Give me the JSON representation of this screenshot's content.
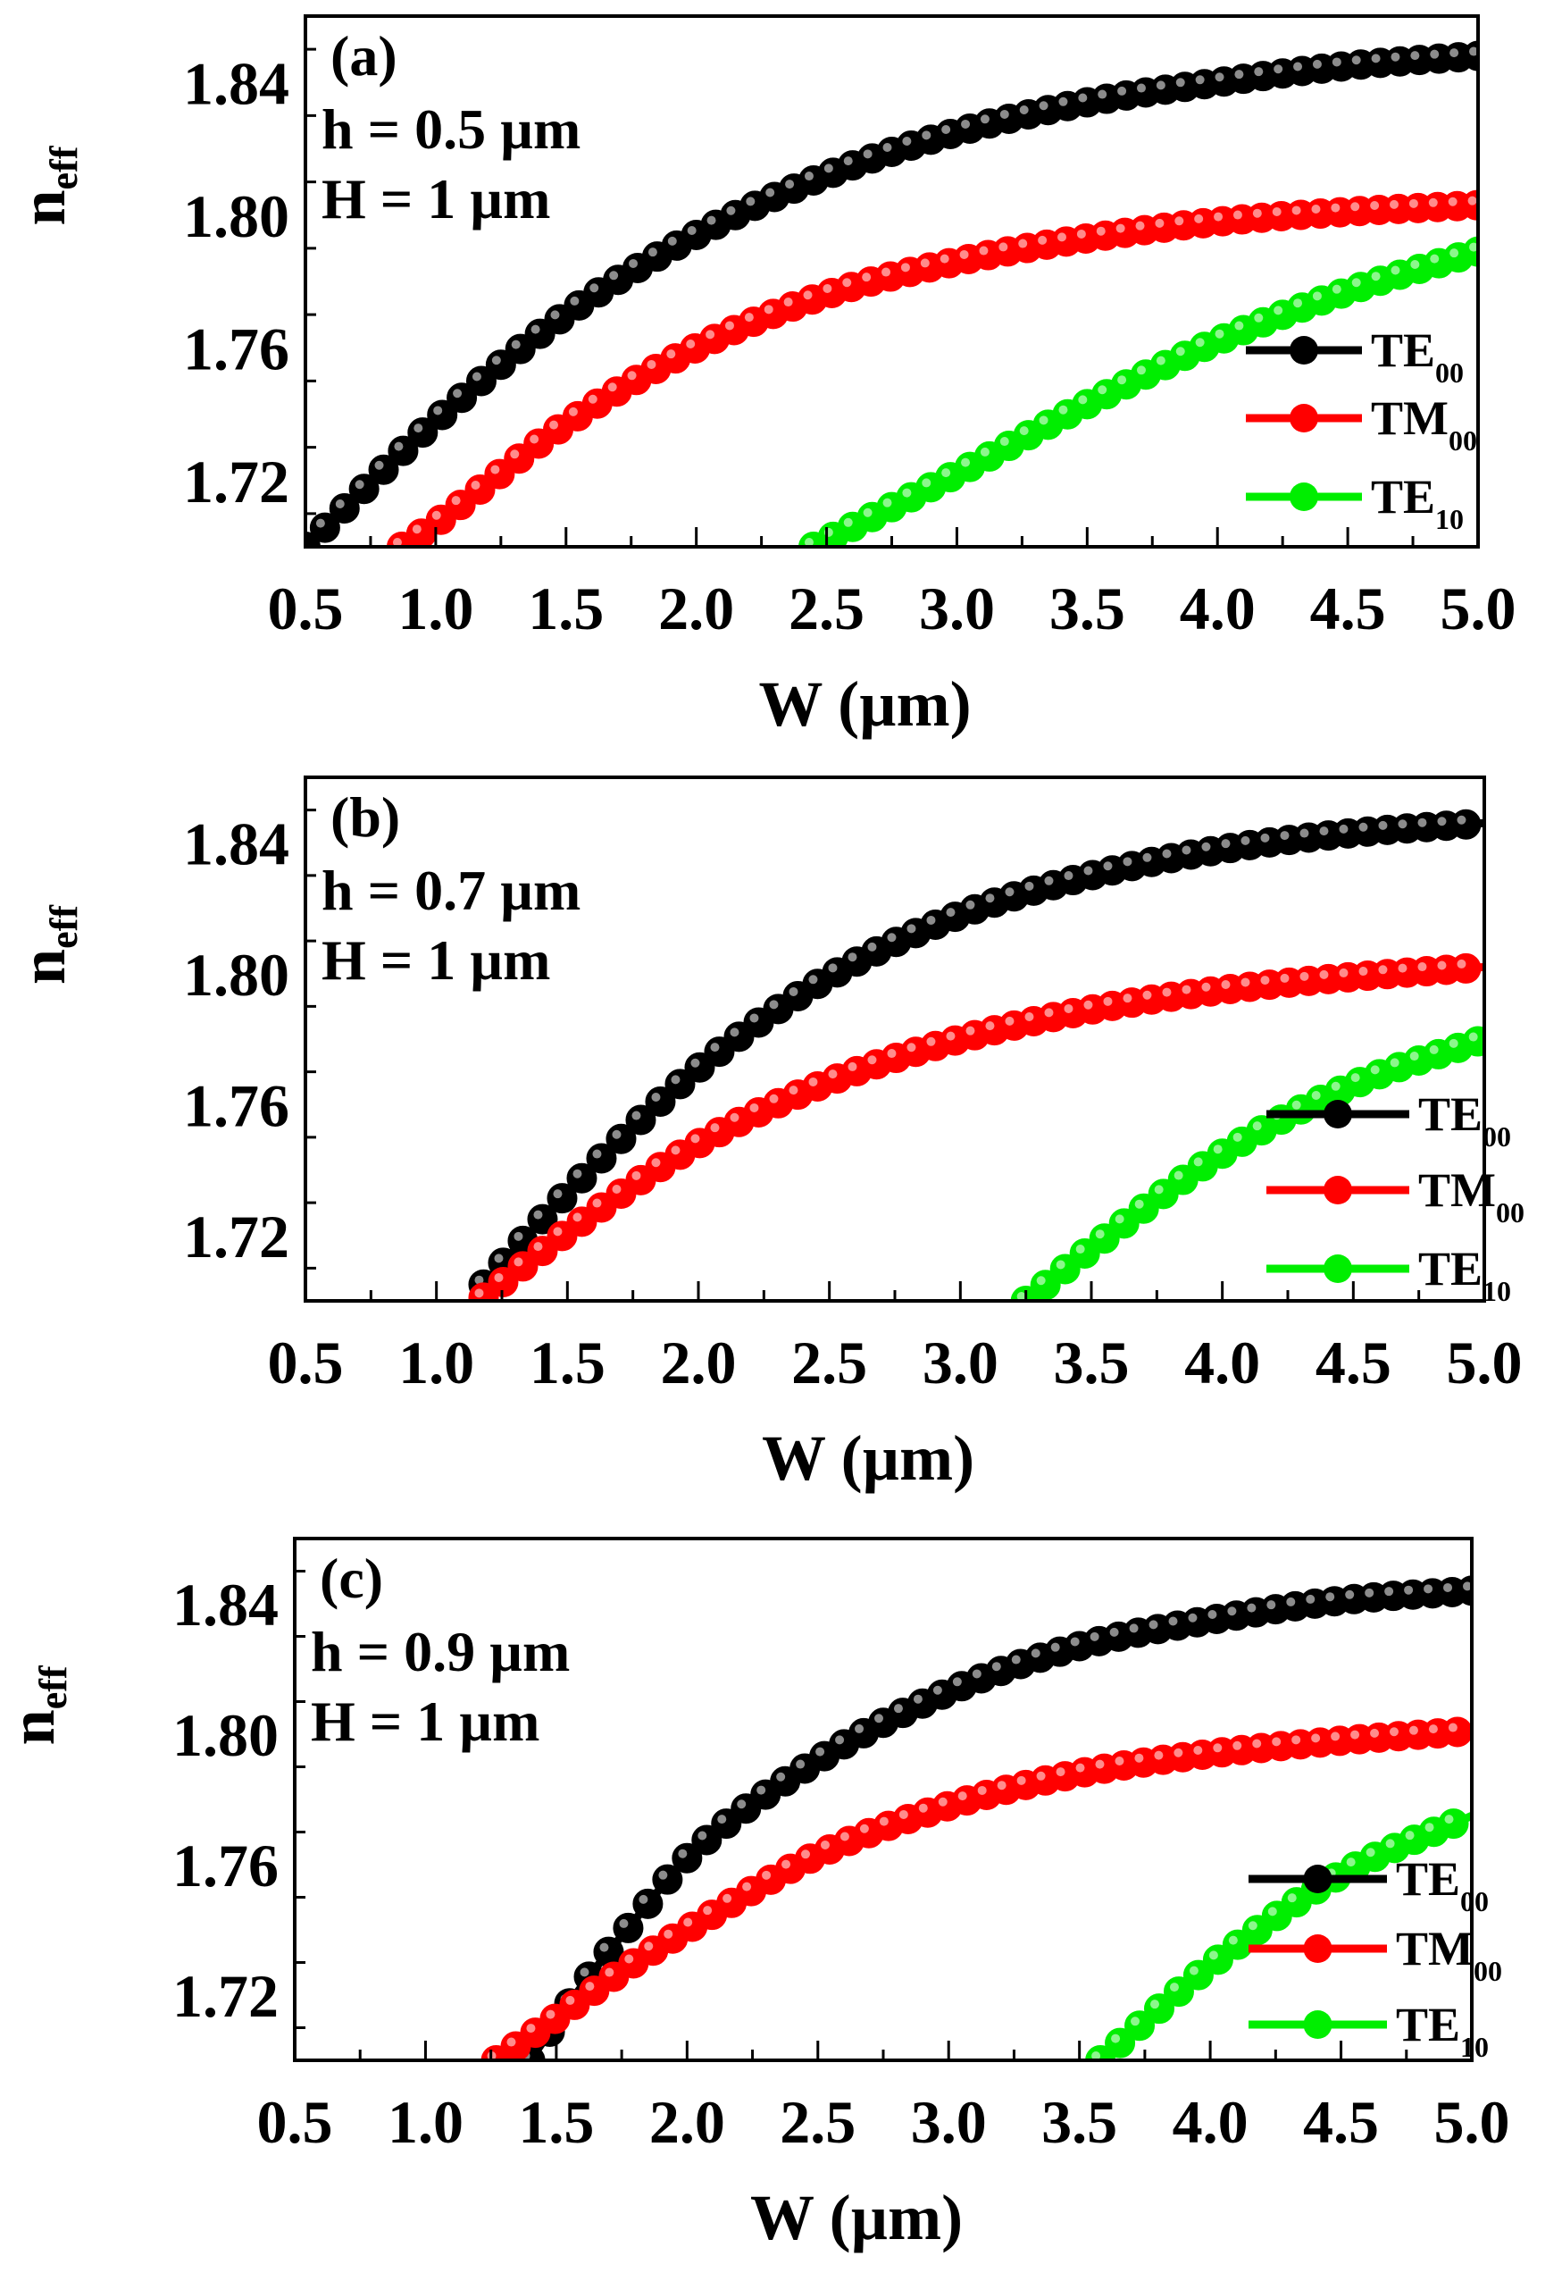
{
  "chart_data": [
    {
      "type": "line",
      "panel_label": "(a)",
      "annotations": [
        "h = 0.5 µm",
        "H = 1 µm"
      ],
      "xlabel": "W (µm)",
      "ylabel": {
        "main": "n",
        "sub": "eff"
      },
      "xlim": [
        0.5,
        5.0
      ],
      "ylim": [
        1.7,
        1.86
      ],
      "xticks": [
        "0.5",
        "1.0",
        "1.5",
        "2.0",
        "2.5",
        "3.0",
        "3.5",
        "4.0",
        "4.5",
        "5.0"
      ],
      "yticks": [
        "1.72",
        "1.76",
        "1.80",
        "1.84"
      ],
      "series": [
        {
          "name": "TE",
          "sub": "00",
          "color": "#000000",
          "x": [
            0.5,
            1.0,
            1.5,
            2.0,
            2.5,
            3.0,
            3.5,
            4.0,
            4.5,
            5.0
          ],
          "y": [
            1.7,
            1.738,
            1.77,
            1.794,
            1.812,
            1.825,
            1.834,
            1.84,
            1.845,
            1.848
          ]
        },
        {
          "name": "TM",
          "sub": "00",
          "color": "#ff0000",
          "x": [
            0.87,
            1.0,
            1.5,
            2.0,
            2.5,
            3.0,
            3.5,
            4.0,
            4.5,
            5.0
          ],
          "y": [
            1.7,
            1.707,
            1.737,
            1.76,
            1.776,
            1.786,
            1.793,
            1.798,
            1.801,
            1.803
          ]
        },
        {
          "name": "TE",
          "sub": "10",
          "color": "#00ee00",
          "x": [
            2.45,
            2.5,
            3.0,
            3.5,
            4.0,
            4.5,
            5.0
          ],
          "y": [
            1.7,
            1.702,
            1.722,
            1.743,
            1.762,
            1.777,
            1.789
          ]
        }
      ]
    },
    {
      "type": "line",
      "panel_label": "(b)",
      "annotations": [
        "h = 0.7 µm",
        "H = 1 µm"
      ],
      "xlabel": "W (µm)",
      "ylabel": {
        "main": "n",
        "sub": "eff"
      },
      "xlim": [
        0.5,
        5.0
      ],
      "ylim": [
        1.7,
        1.86
      ],
      "xticks": [
        "0.5",
        "1.0",
        "1.5",
        "2.0",
        "2.5",
        "3.0",
        "3.5",
        "4.0",
        "4.5",
        "5.0"
      ],
      "yticks": [
        "1.72",
        "1.76",
        "1.80",
        "1.84"
      ],
      "series": [
        {
          "name": "TE",
          "sub": "00",
          "color": "#000000",
          "x": [
            1.18,
            1.5,
            2.0,
            2.5,
            3.0,
            3.5,
            4.0,
            4.5,
            5.0
          ],
          "y": [
            1.705,
            1.733,
            1.771,
            1.799,
            1.818,
            1.83,
            1.838,
            1.843,
            1.846
          ]
        },
        {
          "name": "TM",
          "sub": "00",
          "color": "#ff0000",
          "x": [
            1.18,
            1.5,
            2.0,
            2.5,
            3.0,
            3.5,
            4.0,
            4.5,
            5.0
          ],
          "y": [
            1.701,
            1.721,
            1.748,
            1.767,
            1.78,
            1.789,
            1.795,
            1.799,
            1.802
          ]
        },
        {
          "name": "TE",
          "sub": "10",
          "color": "#00ee00",
          "x": [
            3.25,
            3.5,
            4.0,
            4.5,
            5.0
          ],
          "y": [
            1.7,
            1.716,
            1.745,
            1.766,
            1.78
          ]
        }
      ]
    },
    {
      "type": "line",
      "panel_label": "(c)",
      "annotations": [
        "h = 0.9 µm",
        "H = 1 µm"
      ],
      "xlabel": "W (µm)",
      "ylabel": {
        "main": "n",
        "sub": "eff"
      },
      "xlim": [
        0.5,
        5.0
      ],
      "ylim": [
        1.7,
        1.86
      ],
      "xticks": [
        "0.5",
        "1.0",
        "1.5",
        "2.0",
        "2.5",
        "3.0",
        "3.5",
        "4.0",
        "4.5",
        "5.0"
      ],
      "yticks": [
        "1.72",
        "1.76",
        "1.80",
        "1.84"
      ],
      "series": [
        {
          "name": "TE",
          "sub": "00",
          "color": "#000000",
          "x": [
            1.4,
            1.6,
            1.8,
            2.0,
            2.5,
            3.0,
            3.5,
            4.0,
            4.5,
            5.0
          ],
          "y": [
            1.7,
            1.723,
            1.743,
            1.762,
            1.792,
            1.813,
            1.827,
            1.835,
            1.841,
            1.844
          ]
        },
        {
          "name": "TM",
          "sub": "00",
          "color": "#ff0000",
          "x": [
            1.27,
            1.5,
            1.8,
            2.0,
            2.5,
            3.0,
            3.5,
            4.0,
            4.5,
            5.0
          ],
          "y": [
            1.7,
            1.713,
            1.73,
            1.74,
            1.763,
            1.778,
            1.788,
            1.794,
            1.798,
            1.801
          ]
        },
        {
          "name": "TE",
          "sub": "10",
          "color": "#00ee00",
          "x": [
            3.58,
            3.75,
            4.0,
            4.5,
            5.0
          ],
          "y": [
            1.7,
            1.712,
            1.729,
            1.757,
            1.775
          ]
        }
      ]
    }
  ]
}
